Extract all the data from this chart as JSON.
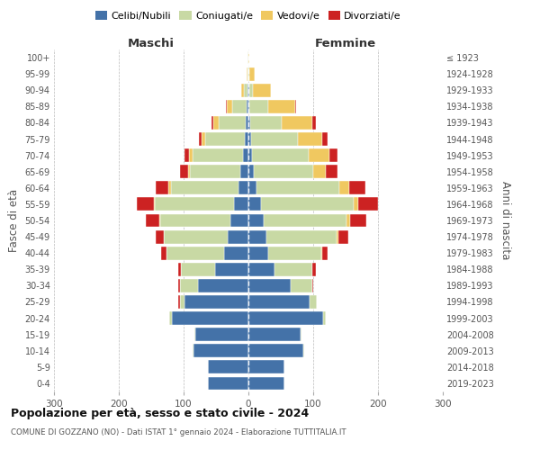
{
  "age_groups": [
    "100+",
    "95-99",
    "90-94",
    "85-89",
    "80-84",
    "75-79",
    "70-74",
    "65-69",
    "60-64",
    "55-59",
    "50-54",
    "45-49",
    "40-44",
    "35-39",
    "30-34",
    "25-29",
    "20-24",
    "15-19",
    "10-14",
    "5-9",
    "0-4"
  ],
  "birth_years": [
    "≤ 1923",
    "1924-1928",
    "1929-1933",
    "1934-1938",
    "1939-1943",
    "1944-1948",
    "1949-1953",
    "1954-1958",
    "1959-1963",
    "1964-1968",
    "1969-1973",
    "1974-1978",
    "1979-1983",
    "1984-1988",
    "1989-1993",
    "1994-1998",
    "1999-2003",
    "2004-2008",
    "2009-2013",
    "2014-2018",
    "2019-2023"
  ],
  "male": {
    "celibe": [
      0,
      0,
      1,
      3,
      4,
      5,
      8,
      12,
      15,
      22,
      28,
      32,
      38,
      52,
      78,
      98,
      118,
      82,
      85,
      62,
      62
    ],
    "coniugato": [
      1,
      2,
      6,
      22,
      42,
      62,
      78,
      78,
      105,
      122,
      108,
      98,
      88,
      52,
      28,
      8,
      4,
      2,
      1,
      0,
      0
    ],
    "vedovo": [
      0,
      1,
      4,
      8,
      8,
      5,
      5,
      3,
      3,
      2,
      2,
      1,
      1,
      0,
      0,
      0,
      0,
      0,
      0,
      0,
      0
    ],
    "divorziato": [
      0,
      0,
      0,
      2,
      3,
      5,
      8,
      12,
      20,
      26,
      20,
      12,
      8,
      5,
      3,
      2,
      0,
      0,
      0,
      0,
      0
    ]
  },
  "female": {
    "nubile": [
      0,
      0,
      1,
      2,
      3,
      4,
      5,
      8,
      12,
      20,
      24,
      28,
      30,
      40,
      65,
      95,
      115,
      80,
      85,
      55,
      55
    ],
    "coniugata": [
      0,
      2,
      6,
      28,
      48,
      72,
      88,
      92,
      128,
      142,
      128,
      108,
      82,
      58,
      33,
      10,
      5,
      2,
      1,
      0,
      0
    ],
    "vedova": [
      1,
      8,
      28,
      42,
      48,
      38,
      32,
      20,
      15,
      8,
      5,
      3,
      2,
      1,
      0,
      0,
      0,
      0,
      0,
      0,
      0
    ],
    "divorziata": [
      0,
      0,
      0,
      2,
      5,
      8,
      12,
      18,
      25,
      30,
      25,
      15,
      8,
      5,
      2,
      1,
      0,
      0,
      0,
      0,
      0
    ]
  },
  "colors": {
    "celibe": "#4472A8",
    "coniugato": "#C8D9A4",
    "vedovo": "#F0C860",
    "divorziato": "#CC2222"
  },
  "title": "Popolazione per età, sesso e stato civile - 2024",
  "subtitle": "COMUNE DI GOZZANO (NO) - Dati ISTAT 1° gennaio 2024 - Elaborazione TUTTITALIA.IT",
  "xlabel_left": "Maschi",
  "xlabel_right": "Femmine",
  "ylabel_left": "Fasce di età",
  "ylabel_right": "Anni di nascita",
  "xlim": 300,
  "legend_labels": [
    "Celibi/Nubili",
    "Coniugati/e",
    "Vedovi/e",
    "Divorziati/e"
  ],
  "background_color": "#ffffff",
  "grid_color": "#bbbbbb"
}
